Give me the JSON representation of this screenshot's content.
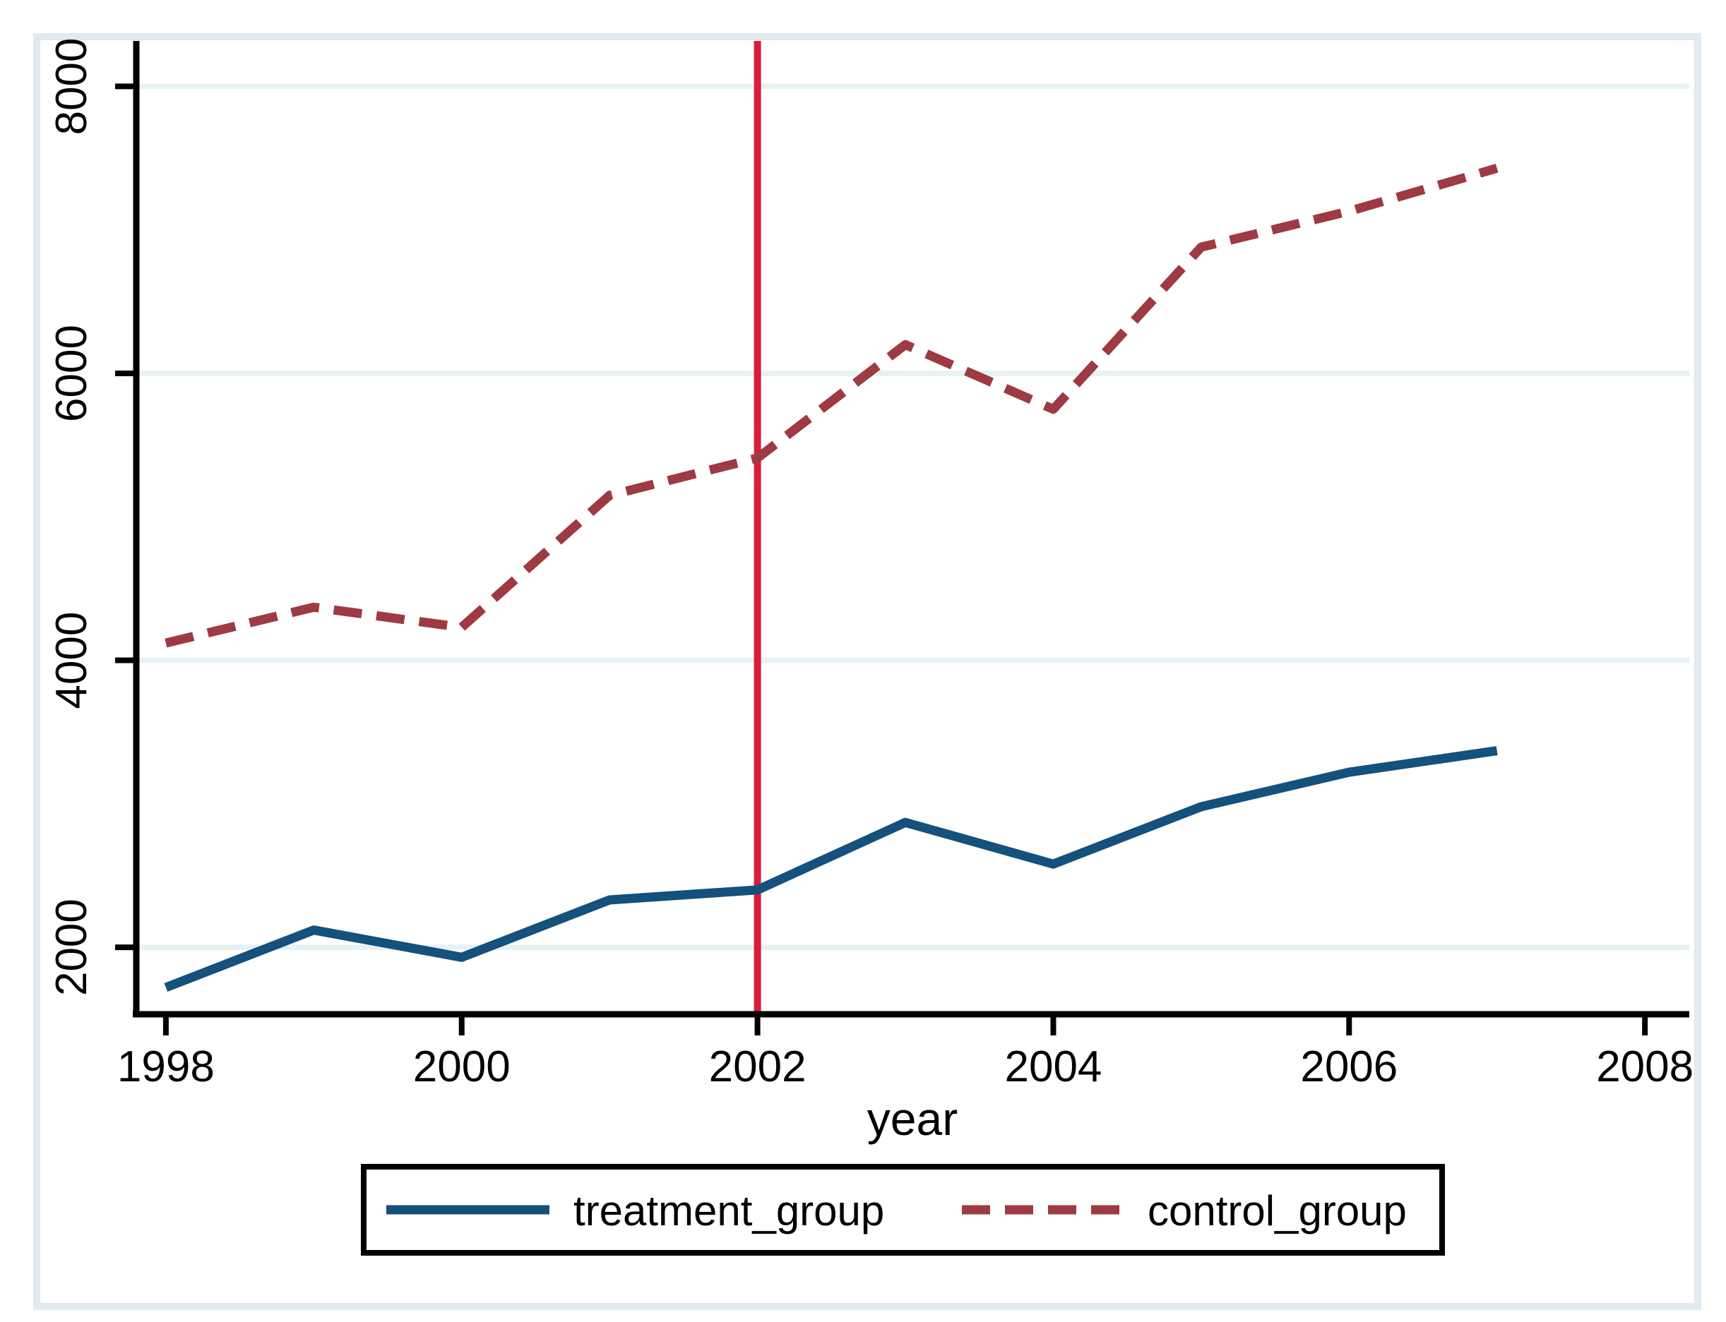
{
  "chart_data": {
    "type": "line",
    "title": "",
    "xlabel": "year",
    "ylabel": "",
    "x": [
      1998,
      1999,
      2000,
      2001,
      2002,
      2003,
      2004,
      2005,
      2006,
      2007
    ],
    "series": [
      {
        "name": "treatment_group",
        "style": "solid",
        "color": "#14517c",
        "values": [
          1720,
          2120,
          1930,
          2330,
          2400,
          2870,
          2580,
          2980,
          3220,
          3370
        ]
      },
      {
        "name": "control_group",
        "style": "dashed",
        "color": "#9e3a41",
        "values": [
          4120,
          4370,
          4230,
          5150,
          5410,
          6200,
          5750,
          6880,
          7130,
          7430
        ]
      }
    ],
    "x_ticks": [
      1998,
      2000,
      2002,
      2004,
      2006,
      2008
    ],
    "y_ticks": [
      2000,
      4000,
      6000,
      8000
    ],
    "xlim": [
      1997.8,
      2008.3
    ],
    "ylim": [
      1533,
      8317
    ],
    "vline": {
      "x": 2002,
      "color": "#da1d3d"
    },
    "grid": "horizontal-only",
    "gridline_color": "#e8f2f4",
    "frame_color": "#dfebee",
    "legend_position": "bottom-center"
  }
}
